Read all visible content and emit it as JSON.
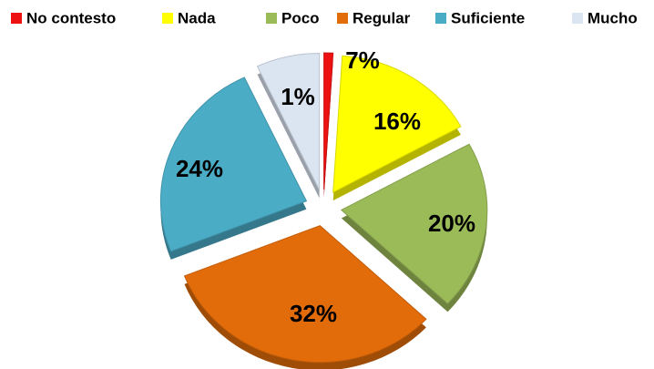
{
  "chart_data": {
    "type": "pie",
    "categories": [
      "No contesto",
      "Nada",
      "Poco",
      "Regular",
      "Suficiente",
      "Mucho"
    ],
    "values": [
      1,
      16,
      20,
      32,
      24,
      7
    ],
    "value_labels": [
      "1%",
      "16%",
      "20%",
      "32%",
      "24%",
      "7%"
    ],
    "colors": [
      "#ee1111",
      "#ffff00",
      "#9bbb59",
      "#e36c0a",
      "#4bacc6",
      "#dbe5f1"
    ],
    "legend": "top"
  }
}
